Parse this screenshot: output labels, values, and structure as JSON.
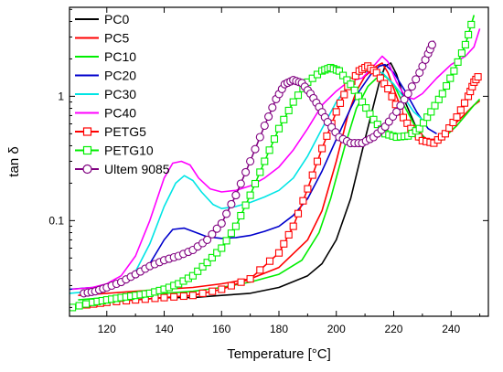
{
  "chart_data": {
    "type": "line",
    "title": "",
    "xlabel": "Temperature [°C]",
    "ylabel": "tan δ",
    "xlim": [
      107,
      253
    ],
    "ylim": [
      0.017,
      5.2
    ],
    "yscale": "log",
    "grid": false,
    "legend_position": "top-left",
    "x_ticks": [
      {
        "value": 120,
        "label": "120"
      },
      {
        "value": 140,
        "label": "140"
      },
      {
        "value": 160,
        "label": "160"
      },
      {
        "value": 180,
        "label": "180"
      },
      {
        "value": 200,
        "label": "200"
      },
      {
        "value": 220,
        "label": "220"
      },
      {
        "value": 240,
        "label": "240"
      }
    ],
    "y_ticks": [
      {
        "value": 0.1,
        "label": "0.1"
      },
      {
        "value": 1,
        "label": "1"
      }
    ],
    "series": [
      {
        "name": "PC0",
        "color": "#000000",
        "marker": "none",
        "points": [
          [
            112,
            0.022
          ],
          [
            120,
            0.023
          ],
          [
            130,
            0.023
          ],
          [
            140,
            0.024
          ],
          [
            150,
            0.024
          ],
          [
            160,
            0.025
          ],
          [
            170,
            0.026
          ],
          [
            180,
            0.029
          ],
          [
            190,
            0.036
          ],
          [
            195,
            0.045
          ],
          [
            200,
            0.07
          ],
          [
            205,
            0.15
          ],
          [
            210,
            0.45
          ],
          [
            213,
            0.85
          ],
          [
            215,
            1.3
          ],
          [
            217,
            1.75
          ],
          [
            219,
            1.85
          ],
          [
            221,
            1.5
          ],
          [
            224,
            0.9
          ],
          [
            228,
            0.55
          ],
          [
            232,
            0.43
          ],
          [
            235,
            0.4
          ]
        ]
      },
      {
        "name": "PC5",
        "color": "#ff0000",
        "marker": "none",
        "points": [
          [
            110,
            0.025
          ],
          [
            120,
            0.026
          ],
          [
            130,
            0.027
          ],
          [
            140,
            0.028
          ],
          [
            150,
            0.029
          ],
          [
            160,
            0.031
          ],
          [
            170,
            0.034
          ],
          [
            180,
            0.042
          ],
          [
            190,
            0.07
          ],
          [
            195,
            0.12
          ],
          [
            200,
            0.3
          ],
          [
            204,
            0.7
          ],
          [
            207,
            1.1
          ],
          [
            210,
            1.45
          ],
          [
            214,
            1.75
          ],
          [
            216,
            1.85
          ],
          [
            218,
            1.55
          ],
          [
            221,
            1.0
          ],
          [
            224,
            0.65
          ],
          [
            228,
            0.45
          ],
          [
            232,
            0.42
          ],
          [
            236,
            0.48
          ],
          [
            242,
            0.62
          ],
          [
            248,
            0.85
          ],
          [
            250,
            0.92
          ]
        ]
      },
      {
        "name": "PC10",
        "color": "#00ee00",
        "marker": "none",
        "points": [
          [
            110,
            0.023
          ],
          [
            120,
            0.024
          ],
          [
            130,
            0.025
          ],
          [
            140,
            0.026
          ],
          [
            150,
            0.027
          ],
          [
            160,
            0.029
          ],
          [
            170,
            0.032
          ],
          [
            180,
            0.037
          ],
          [
            188,
            0.048
          ],
          [
            194,
            0.08
          ],
          [
            198,
            0.15
          ],
          [
            203,
            0.4
          ],
          [
            207,
            0.8
          ],
          [
            211,
            1.2
          ],
          [
            214,
            1.4
          ],
          [
            217,
            1.45
          ],
          [
            220,
            1.25
          ],
          [
            223,
            0.9
          ],
          [
            227,
            0.6
          ],
          [
            231,
            0.45
          ],
          [
            236,
            0.43
          ],
          [
            242,
            0.58
          ],
          [
            248,
            0.85
          ],
          [
            250,
            0.95
          ]
        ]
      },
      {
        "name": "PC20",
        "color": "#0000cc",
        "marker": "none",
        "points": [
          [
            107,
            0.028
          ],
          [
            115,
            0.029
          ],
          [
            120,
            0.03
          ],
          [
            125,
            0.032
          ],
          [
            130,
            0.036
          ],
          [
            135,
            0.045
          ],
          [
            140,
            0.07
          ],
          [
            143,
            0.085
          ],
          [
            147,
            0.087
          ],
          [
            150,
            0.082
          ],
          [
            155,
            0.074
          ],
          [
            160,
            0.072
          ],
          [
            165,
            0.073
          ],
          [
            170,
            0.076
          ],
          [
            175,
            0.082
          ],
          [
            180,
            0.09
          ],
          [
            185,
            0.11
          ],
          [
            190,
            0.15
          ],
          [
            195,
            0.25
          ],
          [
            200,
            0.45
          ],
          [
            205,
            0.8
          ],
          [
            208,
            1.1
          ],
          [
            212,
            1.5
          ],
          [
            215,
            1.75
          ],
          [
            217,
            1.8
          ],
          [
            220,
            1.55
          ],
          [
            224,
            1.1
          ],
          [
            228,
            0.75
          ],
          [
            232,
            0.55
          ],
          [
            235,
            0.5
          ]
        ]
      },
      {
        "name": "PC30",
        "color": "#00e5e5",
        "marker": "none",
        "points": [
          [
            107,
            0.026
          ],
          [
            115,
            0.027
          ],
          [
            120,
            0.028
          ],
          [
            125,
            0.031
          ],
          [
            130,
            0.039
          ],
          [
            135,
            0.065
          ],
          [
            140,
            0.13
          ],
          [
            144,
            0.2
          ],
          [
            147,
            0.23
          ],
          [
            150,
            0.21
          ],
          [
            153,
            0.17
          ],
          [
            157,
            0.135
          ],
          [
            160,
            0.125
          ],
          [
            165,
            0.13
          ],
          [
            170,
            0.14
          ],
          [
            175,
            0.155
          ],
          [
            180,
            0.175
          ],
          [
            185,
            0.22
          ],
          [
            190,
            0.33
          ],
          [
            195,
            0.55
          ],
          [
            200,
            0.9
          ],
          [
            205,
            1.3
          ],
          [
            209,
            1.55
          ],
          [
            212,
            1.6
          ],
          [
            216,
            1.55
          ],
          [
            220,
            1.25
          ],
          [
            224,
            0.95
          ],
          [
            227,
            0.75
          ],
          [
            230,
            0.65
          ]
        ]
      },
      {
        "name": "PC40",
        "color": "#ff00ff",
        "marker": "none",
        "points": [
          [
            108,
            0.028
          ],
          [
            115,
            0.029
          ],
          [
            120,
            0.031
          ],
          [
            125,
            0.036
          ],
          [
            130,
            0.052
          ],
          [
            135,
            0.1
          ],
          [
            140,
            0.22
          ],
          [
            143,
            0.29
          ],
          [
            146,
            0.3
          ],
          [
            149,
            0.28
          ],
          [
            152,
            0.22
          ],
          [
            156,
            0.18
          ],
          [
            160,
            0.17
          ],
          [
            165,
            0.175
          ],
          [
            170,
            0.19
          ],
          [
            175,
            0.22
          ],
          [
            180,
            0.27
          ],
          [
            185,
            0.37
          ],
          [
            190,
            0.55
          ],
          [
            195,
            0.85
          ],
          [
            200,
            1.1
          ],
          [
            203,
            1.25
          ],
          [
            206,
            1.35
          ],
          [
            209,
            1.4
          ],
          [
            213,
            1.75
          ],
          [
            216,
            2.1
          ],
          [
            218,
            1.9
          ],
          [
            221,
            1.3
          ],
          [
            224,
            1.0
          ],
          [
            227,
            0.95
          ],
          [
            230,
            1.05
          ],
          [
            235,
            1.4
          ],
          [
            240,
            1.8
          ],
          [
            245,
            2.1
          ],
          [
            248,
            2.5
          ],
          [
            250,
            3.5
          ]
        ]
      },
      {
        "name": "PETG5",
        "color": "#ff0000",
        "marker": "square",
        "points": [
          [
            113,
            0.021
          ],
          [
            120,
            0.022
          ],
          [
            130,
            0.023
          ],
          [
            140,
            0.024
          ],
          [
            150,
            0.025
          ],
          [
            160,
            0.028
          ],
          [
            170,
            0.034
          ],
          [
            180,
            0.055
          ],
          [
            185,
            0.09
          ],
          [
            190,
            0.18
          ],
          [
            195,
            0.38
          ],
          [
            200,
            0.75
          ],
          [
            204,
            1.2
          ],
          [
            208,
            1.6
          ],
          [
            211,
            1.75
          ],
          [
            214,
            1.55
          ],
          [
            218,
            1.15
          ],
          [
            222,
            0.75
          ],
          [
            226,
            0.55
          ],
          [
            230,
            0.44
          ],
          [
            234,
            0.42
          ],
          [
            238,
            0.5
          ],
          [
            242,
            0.68
          ],
          [
            246,
            1.0
          ],
          [
            248,
            1.3
          ],
          [
            250,
            1.5
          ]
        ]
      },
      {
        "name": "PETG10",
        "color": "#00ee00",
        "marker": "square",
        "points": [
          [
            108,
            0.02
          ],
          [
            115,
            0.022
          ],
          [
            120,
            0.023
          ],
          [
            125,
            0.024
          ],
          [
            130,
            0.025
          ],
          [
            135,
            0.026
          ],
          [
            140,
            0.028
          ],
          [
            145,
            0.031
          ],
          [
            150,
            0.036
          ],
          [
            155,
            0.046
          ],
          [
            160,
            0.06
          ],
          [
            165,
            0.09
          ],
          [
            170,
            0.16
          ],
          [
            175,
            0.3
          ],
          [
            180,
            0.55
          ],
          [
            185,
            0.9
          ],
          [
            190,
            1.3
          ],
          [
            195,
            1.6
          ],
          [
            198,
            1.7
          ],
          [
            201,
            1.6
          ],
          [
            205,
            1.25
          ],
          [
            209,
            0.9
          ],
          [
            213,
            0.65
          ],
          [
            217,
            0.5
          ],
          [
            221,
            0.47
          ],
          [
            225,
            0.48
          ],
          [
            229,
            0.55
          ],
          [
            233,
            0.75
          ],
          [
            237,
            1.05
          ],
          [
            241,
            1.6
          ],
          [
            245,
            2.6
          ],
          [
            248,
            4.5
          ]
        ]
      },
      {
        "name": "Ultem 9085",
        "color": "#800080",
        "marker": "circle",
        "points": [
          [
            112,
            0.026
          ],
          [
            116,
            0.027
          ],
          [
            120,
            0.029
          ],
          [
            125,
            0.032
          ],
          [
            130,
            0.037
          ],
          [
            135,
            0.043
          ],
          [
            140,
            0.048
          ],
          [
            145,
            0.052
          ],
          [
            150,
            0.058
          ],
          [
            155,
            0.07
          ],
          [
            160,
            0.095
          ],
          [
            165,
            0.16
          ],
          [
            170,
            0.3
          ],
          [
            175,
            0.58
          ],
          [
            179,
            0.95
          ],
          [
            182,
            1.25
          ],
          [
            185,
            1.35
          ],
          [
            188,
            1.28
          ],
          [
            191,
            1.05
          ],
          [
            194,
            0.82
          ],
          [
            197,
            0.62
          ],
          [
            201,
            0.47
          ],
          [
            205,
            0.42
          ],
          [
            209,
            0.42
          ],
          [
            213,
            0.47
          ],
          [
            217,
            0.57
          ],
          [
            221,
            0.75
          ],
          [
            225,
            1.05
          ],
          [
            229,
            1.55
          ],
          [
            232,
            2.2
          ],
          [
            234,
            2.8
          ]
        ]
      }
    ]
  }
}
